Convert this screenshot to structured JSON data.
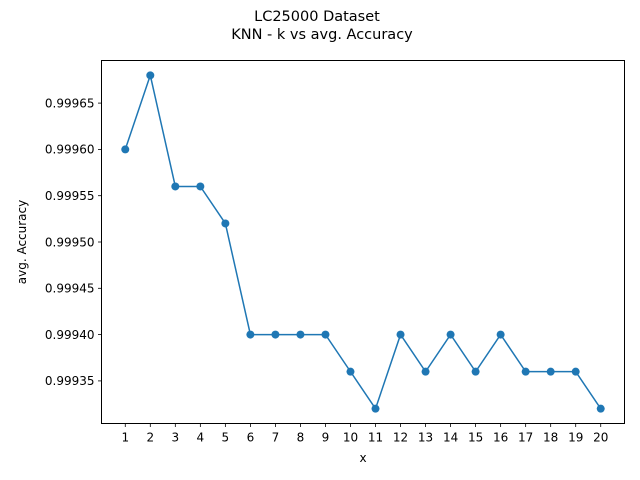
{
  "chart_data": {
    "type": "line",
    "title": "LC25000 Dataset",
    "subtitle": "KNN - k vs avg. Accuracy",
    "xlabel": "x",
    "ylabel": "avg. Accuracy",
    "x": [
      1,
      2,
      3,
      4,
      5,
      6,
      7,
      8,
      9,
      10,
      11,
      12,
      13,
      14,
      15,
      16,
      17,
      18,
      19,
      20
    ],
    "series": [
      {
        "values": [
          0.9996,
          0.99968,
          0.99956,
          0.99956,
          0.99952,
          0.9994,
          0.9994,
          0.9994,
          0.9994,
          0.99936,
          0.99932,
          0.9994,
          0.99936,
          0.9994,
          0.99936,
          0.9994,
          0.99936,
          0.99936,
          0.99936,
          0.99932
        ],
        "color": "#1f77b4",
        "marker": "circle"
      }
    ],
    "xticks": [
      "1",
      "2",
      "3",
      "4",
      "5",
      "6",
      "7",
      "8",
      "9",
      "10",
      "11",
      "12",
      "13",
      "14",
      "15",
      "16",
      "17",
      "18",
      "19",
      "20"
    ],
    "yticks": [
      "0.99935",
      "0.99940",
      "0.99945",
      "0.99950",
      "0.99955",
      "0.99960",
      "0.99965"
    ],
    "ylim": [
      0.999304,
      0.999696
    ],
    "xlim": [
      0.05,
      20.95
    ],
    "grid": false,
    "legend": "none"
  }
}
